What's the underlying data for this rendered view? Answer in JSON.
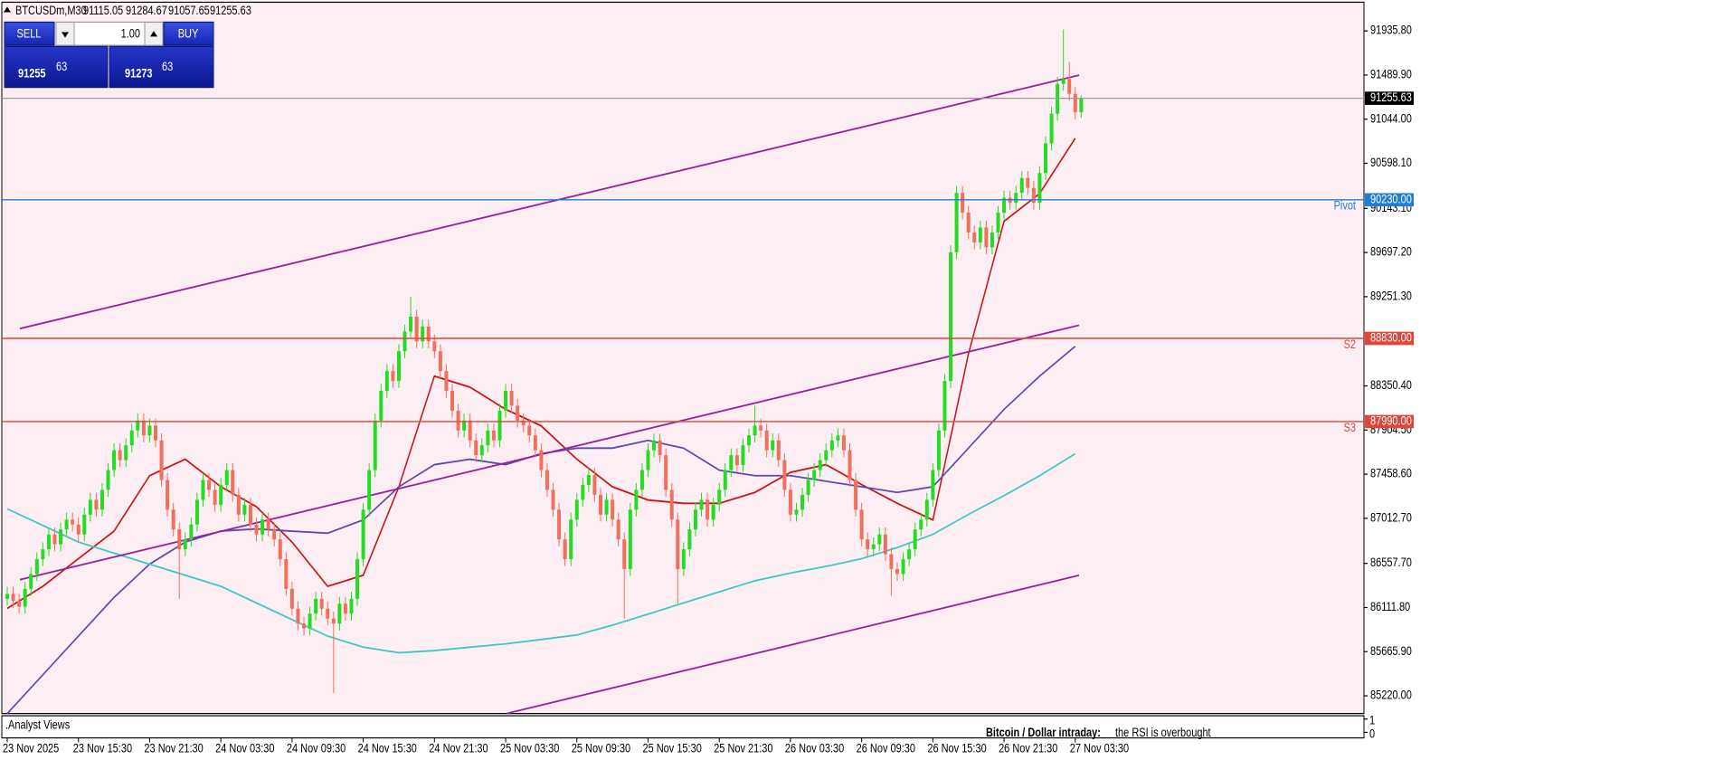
{
  "header": {
    "symbol": "BTCUSDm,M30",
    "open": 91115.05,
    "high": 91284.67,
    "low": 91057.65,
    "close": 91255.63
  },
  "trade_panel": {
    "sell_label": "SELL",
    "buy_label": "BUY",
    "volume": {
      "value": 1,
      "label": "1.00"
    },
    "sell_big": 91255,
    "sell_small": 63,
    "buy_big": 91273,
    "buy_small": 63
  },
  "chart_data": {
    "type": "candlestick",
    "x_labels": [
      "23 Nov 2025",
      "23 Nov 15:30",
      "23 Nov 21:30",
      "24 Nov 03:30",
      "24 Nov 09:30",
      "24 Nov 15:30",
      "24 Nov 21:30",
      "25 Nov 03:30",
      "25 Nov 09:30",
      "25 Nov 15:30",
      "25 Nov 21:30",
      "26 Nov 03:30",
      "26 Nov 09:30",
      "26 Nov 15:30",
      "26 Nov 21:30",
      "27 Nov 03:30"
    ],
    "candles": [
      [
        86200,
        86320,
        86130,
        86250
      ],
      [
        86250,
        86320,
        86110,
        86180
      ],
      [
        86180,
        86250,
        86050,
        86120
      ],
      [
        86120,
        86370,
        86050,
        86300
      ],
      [
        86300,
        86520,
        86230,
        86450
      ],
      [
        86450,
        86670,
        86380,
        86600
      ],
      [
        86600,
        86770,
        86530,
        86700
      ],
      [
        86700,
        86920,
        86630,
        86850
      ],
      [
        86850,
        86920,
        86680,
        86750
      ],
      [
        86750,
        86970,
        86680,
        86900
      ],
      [
        86900,
        87070,
        86830,
        87000
      ],
      [
        87000,
        87070,
        86880,
        86950
      ],
      [
        86950,
        87020,
        86780,
        86850
      ],
      [
        86850,
        87120,
        86780,
        87050
      ],
      [
        87050,
        87270,
        86980,
        87200
      ],
      [
        87200,
        87270,
        87030,
        87100
      ],
      [
        87100,
        87370,
        87030,
        87300
      ],
      [
        87300,
        87570,
        87230,
        87500
      ],
      [
        87500,
        87770,
        87430,
        87700
      ],
      [
        87700,
        87770,
        87530,
        87600
      ],
      [
        87600,
        87820,
        87530,
        87750
      ],
      [
        87750,
        87970,
        87680,
        87900
      ],
      [
        87900,
        88070,
        87830,
        88000
      ],
      [
        88000,
        88070,
        87780,
        87850
      ],
      [
        87850,
        88020,
        87780,
        87950
      ],
      [
        87950,
        88020,
        87730,
        87800
      ],
      [
        87800,
        87870,
        87330,
        87400
      ],
      [
        87400,
        87470,
        87030,
        87100
      ],
      [
        87100,
        87170,
        86830,
        86900
      ],
      [
        86900,
        86970,
        86200,
        86700
      ],
      [
        86700,
        86870,
        86630,
        86800
      ],
      [
        86800,
        87020,
        86730,
        86950
      ],
      [
        86950,
        87270,
        86880,
        87200
      ],
      [
        87200,
        87470,
        87130,
        87400
      ],
      [
        87400,
        87470,
        87230,
        87300
      ],
      [
        87300,
        87370,
        87080,
        87150
      ],
      [
        87150,
        87420,
        87080,
        87350
      ],
      [
        87350,
        87570,
        87280,
        87500
      ],
      [
        87500,
        87570,
        87180,
        87250
      ],
      [
        87250,
        87320,
        86980,
        87050
      ],
      [
        87050,
        87220,
        86980,
        87150
      ],
      [
        87150,
        87220,
        86880,
        86950
      ],
      [
        86950,
        87020,
        86780,
        86850
      ],
      [
        86850,
        87070,
        86780,
        87000
      ],
      [
        87000,
        87070,
        86830,
        86900
      ],
      [
        86900,
        86970,
        86730,
        86800
      ],
      [
        86800,
        86870,
        86530,
        86600
      ],
      [
        86600,
        86670,
        86230,
        86300
      ],
      [
        86300,
        86370,
        86030,
        86100
      ],
      [
        86100,
        86170,
        85880,
        85950
      ],
      [
        85950,
        86020,
        85830,
        85900
      ],
      [
        85900,
        86120,
        85830,
        86050
      ],
      [
        86050,
        86270,
        85980,
        86200
      ],
      [
        86200,
        86270,
        86030,
        86100
      ],
      [
        86100,
        86170,
        85930,
        86000
      ],
      [
        86000,
        86070,
        85250,
        85950
      ],
      [
        85950,
        86220,
        85880,
        86150
      ],
      [
        86150,
        86220,
        85980,
        86050
      ],
      [
        86050,
        86270,
        85980,
        86200
      ],
      [
        86200,
        86670,
        86130,
        86600
      ],
      [
        86600,
        87170,
        86530,
        87100
      ],
      [
        87100,
        87570,
        87030,
        87500
      ],
      [
        87500,
        88070,
        87430,
        88000
      ],
      [
        88000,
        88370,
        87930,
        88300
      ],
      [
        88300,
        88570,
        88230,
        88500
      ],
      [
        88500,
        88570,
        88330,
        88400
      ],
      [
        88400,
        88770,
        88330,
        88700
      ],
      [
        88700,
        88970,
        88630,
        88900
      ],
      [
        88900,
        89250,
        88830,
        89050
      ],
      [
        89050,
        89120,
        88730,
        88800
      ],
      [
        88800,
        89020,
        88730,
        88950
      ],
      [
        88950,
        89020,
        88730,
        88800
      ],
      [
        88800,
        88870,
        88630,
        88700
      ],
      [
        88700,
        88770,
        88430,
        88500
      ],
      [
        88500,
        88570,
        88230,
        88300
      ],
      [
        88300,
        88370,
        88030,
        88100
      ],
      [
        88100,
        88170,
        87830,
        87900
      ],
      [
        87900,
        88070,
        87830,
        88000
      ],
      [
        88000,
        88070,
        87730,
        87800
      ],
      [
        87800,
        87870,
        87580,
        87650
      ],
      [
        87650,
        87820,
        87580,
        87750
      ],
      [
        87750,
        87970,
        87680,
        87900
      ],
      [
        87900,
        87970,
        87730,
        87800
      ],
      [
        87800,
        88170,
        87730,
        88100
      ],
      [
        88100,
        88370,
        88030,
        88300
      ],
      [
        88300,
        88370,
        88080,
        88150
      ],
      [
        88150,
        88220,
        87930,
        88000
      ],
      [
        88000,
        88070,
        87880,
        87950
      ],
      [
        87950,
        88020,
        87780,
        87850
      ],
      [
        87850,
        87920,
        87630,
        87700
      ],
      [
        87700,
        87770,
        87430,
        87500
      ],
      [
        87500,
        87570,
        87230,
        87300
      ],
      [
        87300,
        87370,
        87030,
        87100
      ],
      [
        87100,
        87170,
        86730,
        86800
      ],
      [
        86800,
        86870,
        86530,
        86600
      ],
      [
        86600,
        87070,
        86530,
        87000
      ],
      [
        87000,
        87270,
        86930,
        87200
      ],
      [
        87200,
        87420,
        87130,
        87350
      ],
      [
        87350,
        87520,
        87280,
        87450
      ],
      [
        87450,
        87520,
        87180,
        87250
      ],
      [
        87250,
        87320,
        86980,
        87050
      ],
      [
        87050,
        87270,
        86980,
        87200
      ],
      [
        87200,
        87270,
        86930,
        87000
      ],
      [
        87000,
        87070,
        86730,
        86800
      ],
      [
        86800,
        86870,
        86000,
        86500
      ],
      [
        86500,
        87170,
        86430,
        87100
      ],
      [
        87100,
        87370,
        87030,
        87300
      ],
      [
        87300,
        87570,
        87230,
        87500
      ],
      [
        87500,
        87770,
        87430,
        87700
      ],
      [
        87700,
        87870,
        87630,
        87800
      ],
      [
        87800,
        87870,
        87580,
        87650
      ],
      [
        87650,
        87720,
        87230,
        87300
      ],
      [
        87300,
        87370,
        86930,
        87000
      ],
      [
        87000,
        87070,
        86150,
        86500
      ],
      [
        86500,
        86770,
        86430,
        86700
      ],
      [
        86700,
        86970,
        86630,
        86900
      ],
      [
        86900,
        87170,
        86830,
        87100
      ],
      [
        87100,
        87270,
        87030,
        87200
      ],
      [
        87200,
        87270,
        86930,
        87000
      ],
      [
        87000,
        87220,
        86930,
        87150
      ],
      [
        87150,
        87370,
        87080,
        87300
      ],
      [
        87300,
        87570,
        87230,
        87500
      ],
      [
        87500,
        87720,
        87430,
        87650
      ],
      [
        87650,
        87720,
        87480,
        87550
      ],
      [
        87550,
        87820,
        87480,
        87750
      ],
      [
        87750,
        87920,
        87680,
        87850
      ],
      [
        87850,
        88150,
        87780,
        87950
      ],
      [
        87950,
        88020,
        87830,
        87900
      ],
      [
        87900,
        87970,
        87630,
        87700
      ],
      [
        87700,
        87870,
        87630,
        87800
      ],
      [
        87800,
        87870,
        87530,
        87600
      ],
      [
        87600,
        87670,
        87230,
        87300
      ],
      [
        87300,
        87370,
        86980,
        87050
      ],
      [
        87050,
        87170,
        86980,
        87100
      ],
      [
        87100,
        87320,
        87030,
        87250
      ],
      [
        87250,
        87470,
        87180,
        87400
      ],
      [
        87400,
        87570,
        87330,
        87500
      ],
      [
        87500,
        87670,
        87430,
        87600
      ],
      [
        87600,
        87770,
        87530,
        87700
      ],
      [
        87700,
        87870,
        87630,
        87800
      ],
      [
        87800,
        87920,
        87730,
        87850
      ],
      [
        87850,
        87920,
        87630,
        87700
      ],
      [
        87700,
        87770,
        87330,
        87400
      ],
      [
        87400,
        87470,
        87030,
        87100
      ],
      [
        87100,
        87170,
        86730,
        86800
      ],
      [
        86800,
        86870,
        86630,
        86700
      ],
      [
        86700,
        86820,
        86630,
        86750
      ],
      [
        86750,
        86920,
        86680,
        86850
      ],
      [
        86850,
        86920,
        86580,
        86650
      ],
      [
        86650,
        86720,
        86230,
        86500
      ],
      [
        86500,
        86570,
        86380,
        86450
      ],
      [
        86450,
        86670,
        86380,
        86600
      ],
      [
        86600,
        86770,
        86530,
        86700
      ],
      [
        86700,
        86970,
        86630,
        86900
      ],
      [
        86900,
        87070,
        86830,
        87000
      ],
      [
        87000,
        87270,
        86930,
        87200
      ],
      [
        87200,
        87570,
        87130,
        87500
      ],
      [
        87500,
        87970,
        87430,
        87900
      ],
      [
        87900,
        88470,
        87830,
        88400
      ],
      [
        88400,
        89770,
        88330,
        89700
      ],
      [
        89700,
        90370,
        89630,
        90300
      ],
      [
        90300,
        90370,
        90030,
        90100
      ],
      [
        90100,
        90170,
        89830,
        89900
      ],
      [
        89900,
        89970,
        89730,
        89800
      ],
      [
        89800,
        90020,
        89730,
        89950
      ],
      [
        89950,
        90020,
        89680,
        89750
      ],
      [
        89750,
        89970,
        89680,
        89900
      ],
      [
        89900,
        90170,
        89830,
        90100
      ],
      [
        90100,
        90320,
        90030,
        90250
      ],
      [
        90250,
        90320,
        90130,
        90200
      ],
      [
        90200,
        90370,
        90130,
        90300
      ],
      [
        90300,
        90520,
        90230,
        90450
      ],
      [
        90450,
        90520,
        90280,
        90350
      ],
      [
        90350,
        90420,
        90130,
        90200
      ],
      [
        90200,
        90570,
        90130,
        90500
      ],
      [
        90500,
        90870,
        90430,
        90800
      ],
      [
        90800,
        91170,
        90730,
        91100
      ],
      [
        91100,
        91470,
        91030,
        91400
      ],
      [
        91400,
        91950,
        91330,
        91450
      ],
      [
        91450,
        91620,
        91230,
        91300
      ],
      [
        91300,
        91370,
        91045,
        91115.05
      ],
      [
        91115.05,
        91284.67,
        91057.65,
        91255.63
      ]
    ],
    "colors": {
      "up": "#22dd22",
      "down": "#f0705c"
    },
    "ylim": [
      85041,
      92192
    ],
    "yticks": [
      {
        "value": 91935.8,
        "label": "91935.80"
      },
      {
        "value": 91489.9,
        "label": "91489.90"
      },
      {
        "value": 91044,
        "label": "91044.00"
      },
      {
        "value": 90598.1,
        "label": "90598.10"
      },
      {
        "value": 90143.1,
        "label": "90143.10"
      },
      {
        "value": 89697.2,
        "label": "89697.20"
      },
      {
        "value": 89251.3,
        "label": "89251.30"
      },
      {
        "value": 88350.4,
        "label": "88350.40"
      },
      {
        "value": 87904.5,
        "label": "87904.50"
      },
      {
        "value": 87458.6,
        "label": "87458.60"
      },
      {
        "value": 87012.7,
        "label": "87012.70"
      },
      {
        "value": 86557.7,
        "label": "86557.70"
      },
      {
        "value": 86111.8,
        "label": "86111.80"
      },
      {
        "value": 85665.9,
        "label": "85665.90"
      },
      {
        "value": 85220,
        "label": "85220.00"
      }
    ],
    "moving_averages": [
      {
        "color": "#cc1111",
        "values": [
          86102,
          86326,
          86605,
          86884,
          87443,
          87610,
          87331,
          87130,
          86773,
          86326,
          86438,
          87331,
          88449,
          88337,
          88114,
          87946,
          87610,
          87331,
          87197,
          87164,
          87164,
          87275,
          87477,
          87555,
          87354,
          87164,
          86996,
          88672,
          90013,
          90292,
          90851
        ]
      },
      {
        "color": "#5b4ab0",
        "values": [
          85041,
          85432,
          85823,
          86214,
          86549,
          86773,
          86884,
          86906,
          86884,
          86862,
          86996,
          87331,
          87555,
          87610,
          87555,
          87666,
          87722,
          87722,
          87800,
          87722,
          87499,
          87443,
          87443,
          87387,
          87331,
          87275,
          87331,
          87722,
          88114,
          88449,
          88751
        ]
      },
      {
        "color": "#3cc8c8",
        "values": [
          87108,
          86940,
          86773,
          86661,
          86549,
          86438,
          86326,
          86158,
          85990,
          85823,
          85711,
          85655,
          85677,
          85711,
          85745,
          85789,
          85834,
          85934,
          86046,
          86158,
          86270,
          86382,
          86460,
          86527,
          86605,
          86717,
          86851,
          87052,
          87242,
          87443,
          87666
        ]
      }
    ],
    "trendlines": [
      {
        "color": "#9b1f9b",
        "values": [
          88929,
          91488
        ]
      },
      {
        "color": "#9b1f9b",
        "values": [
          86393,
          88963
        ]
      },
      {
        "color": "#9b1f9b",
        "values": [
          85041,
          86437
        ]
      }
    ],
    "levels": [
      {
        "name": "Pivot",
        "value": 90230,
        "label": "90230.00",
        "color": "#1f7fd6"
      },
      {
        "name": "S2",
        "value": 88830,
        "label": "88830.00",
        "color": "#e0453a"
      },
      {
        "name": "S3",
        "value": 87990,
        "label": "87990.00",
        "color": "#e0453a"
      }
    ],
    "last_price": {
      "value": 91255.63,
      "label": "91255.63"
    }
  },
  "indicator_panel": {
    "title": ".Analyst Views",
    "headline": "Bitcoin / Dollar intraday:",
    "text": "the RSI is overbought",
    "yticks": [
      1,
      0
    ]
  }
}
